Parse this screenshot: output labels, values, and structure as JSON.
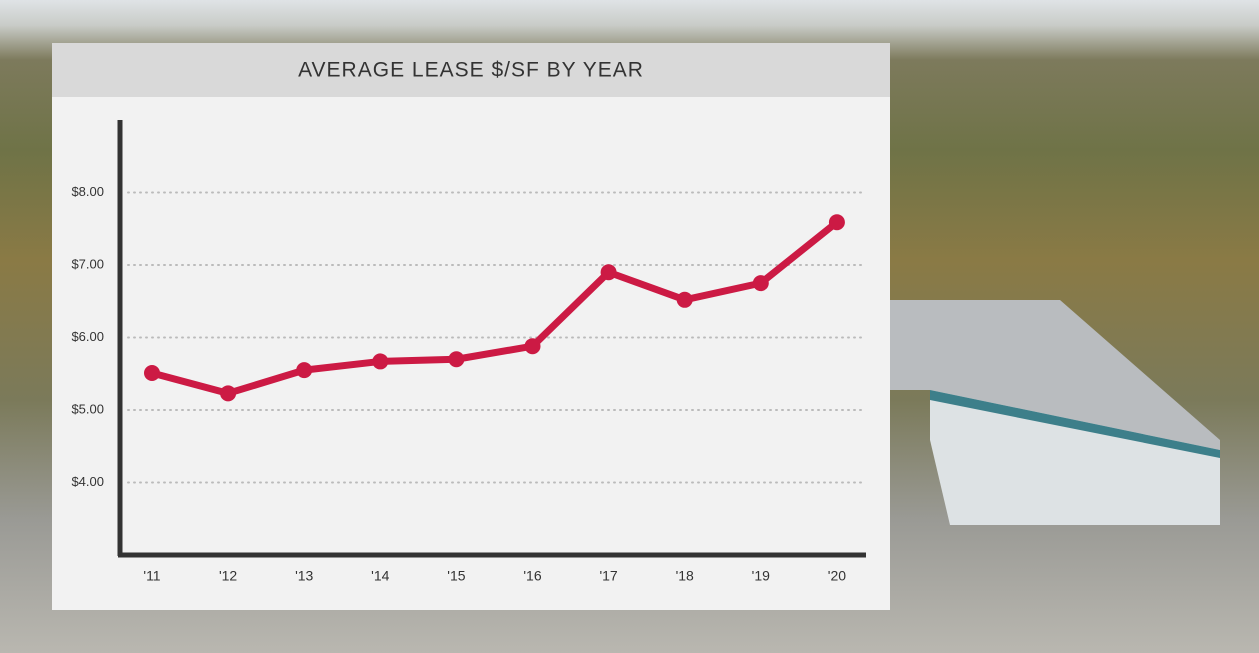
{
  "chart_data": {
    "type": "line",
    "title": "AVERAGE LEASE $/SF BY YEAR",
    "categories": [
      "'11",
      "'12",
      "'13",
      "'14",
      "'15",
      "'16",
      "'17",
      "'18",
      "'19",
      "'20"
    ],
    "values": [
      5.51,
      5.23,
      5.55,
      5.67,
      5.7,
      5.88,
      6.9,
      6.52,
      6.75,
      7.59
    ],
    "color": "#cc1a44",
    "ylim": [
      3,
      9
    ],
    "yticks": [
      {
        "value": 4,
        "label": "$4.00"
      },
      {
        "value": 5,
        "label": "$5.00"
      },
      {
        "value": 6,
        "label": "$6.00"
      },
      {
        "value": 7,
        "label": "$7.00"
      },
      {
        "value": 8,
        "label": "$8.00"
      }
    ],
    "grid": true
  }
}
